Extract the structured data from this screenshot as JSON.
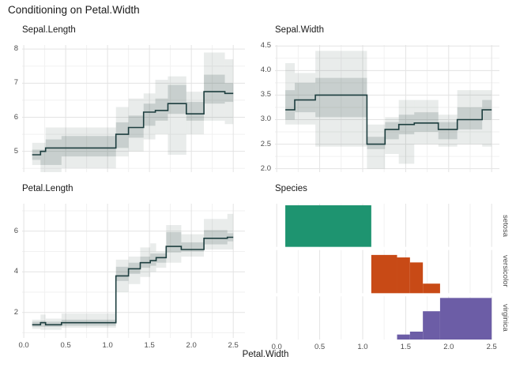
{
  "title": "Conditioning on Petal.Width",
  "x_axis": {
    "label": "Petal.Width",
    "tick_values": [
      0,
      0.5,
      1.0,
      1.5,
      2.0,
      2.5
    ],
    "tick_labels": [
      "0.0",
      "0.5",
      "1.0",
      "1.5",
      "2.0",
      "2.5"
    ],
    "minor_ticks": [
      0.25,
      0.75,
      1.25,
      1.75,
      2.25
    ]
  },
  "colors": {
    "background": "#ffffff",
    "step_line": "#1d3e3f",
    "band": "#46615c",
    "grid_major": "#e3e3e3",
    "grid_minor": "#f1f1f1",
    "text_dark": "#1a1a1a",
    "text_gray": "#4d4d4d",
    "setosa": "#1e9470",
    "versicolor": "#c84a16",
    "virginica": "#6c5da6"
  },
  "chart_data": [
    {
      "type": "area",
      "panel": "sepal-length",
      "title": "Sepal.Length",
      "xlabel": "Petal.Width",
      "ylim": [
        4.39,
        8.12
      ],
      "yticks": [
        5,
        6,
        7,
        8
      ],
      "ytick_labels": [
        "5",
        "6",
        "7",
        "8"
      ],
      "yminor": [
        4.5,
        5.5,
        6.5,
        7.5
      ],
      "grid": true,
      "segments_key": "[x_from, x_to, median, outer_lo, outer_hi, inner_lo, inner_hi]",
      "segments": [
        [
          0.1,
          0.2,
          4.9,
          4.6,
          5.25,
          4.75,
          5.05
        ],
        [
          0.2,
          0.26,
          5.0,
          4.35,
          5.25,
          4.6,
          5.05
        ],
        [
          0.26,
          0.45,
          5.1,
          4.35,
          5.7,
          4.6,
          5.35
        ],
        [
          0.45,
          1.1,
          5.1,
          4.5,
          5.7,
          4.85,
          5.45
        ],
        [
          1.1,
          1.25,
          5.5,
          4.85,
          6.3,
          5.1,
          5.85
        ],
        [
          1.25,
          1.43,
          5.7,
          5.0,
          6.55,
          5.4,
          6.05
        ],
        [
          1.43,
          1.57,
          6.15,
          5.35,
          6.7,
          5.75,
          6.4
        ],
        [
          1.57,
          1.72,
          6.2,
          5.5,
          7.1,
          5.9,
          6.55
        ],
        [
          1.72,
          1.94,
          6.4,
          4.9,
          7.2,
          6.1,
          6.95
        ],
        [
          1.94,
          2.15,
          6.1,
          5.5,
          6.75,
          5.9,
          6.45
        ],
        [
          2.15,
          2.4,
          6.75,
          5.9,
          7.9,
          6.4,
          7.25
        ],
        [
          2.4,
          2.5,
          6.7,
          5.8,
          7.7,
          6.45,
          7.0
        ]
      ]
    },
    {
      "type": "area",
      "panel": "sepal-width",
      "title": "Sepal.Width",
      "xlabel": "Petal.Width",
      "ylim": [
        1.93,
        4.52
      ],
      "yticks": [
        2.0,
        2.5,
        3.0,
        3.5,
        4.0,
        4.5
      ],
      "ytick_labels": [
        "2.0",
        "2.5",
        "3.0",
        "3.5",
        "4.0",
        "4.5"
      ],
      "yminor": [
        2.25,
        2.75,
        3.25,
        3.75,
        4.25
      ],
      "grid": true,
      "segments_key": "[x_from, x_to, median, outer_lo, outer_hi, inner_lo, inner_hi]",
      "segments": [
        [
          0.1,
          0.21,
          3.2,
          2.9,
          4.15,
          3.0,
          3.6
        ],
        [
          0.21,
          0.45,
          3.4,
          2.9,
          3.95,
          3.15,
          3.75
        ],
        [
          0.45,
          1.05,
          3.5,
          2.45,
          4.4,
          3.05,
          3.85
        ],
        [
          1.05,
          1.26,
          2.5,
          2.0,
          2.9,
          2.4,
          2.65
        ],
        [
          1.26,
          1.42,
          2.8,
          2.3,
          3.05,
          2.6,
          2.95
        ],
        [
          1.42,
          1.6,
          2.9,
          2.1,
          3.4,
          2.7,
          3.1
        ],
        [
          1.6,
          1.88,
          2.93,
          2.5,
          3.4,
          2.75,
          3.15
        ],
        [
          1.88,
          2.1,
          2.8,
          2.45,
          3.1,
          2.6,
          2.95
        ],
        [
          2.1,
          2.39,
          3.0,
          2.5,
          3.6,
          2.8,
          3.25
        ],
        [
          2.39,
          2.5,
          3.2,
          2.45,
          3.6,
          3.0,
          3.4
        ]
      ]
    },
    {
      "type": "area",
      "panel": "petal-length",
      "title": "Petal.Length",
      "xlabel": "Petal.Width",
      "ylim": [
        0.75,
        7.35
      ],
      "yticks": [
        2,
        4,
        6
      ],
      "ytick_labels": [
        "2",
        "4",
        "6"
      ],
      "yminor": [
        1,
        3,
        5,
        7
      ],
      "grid": true,
      "segments_key": "[x_from, x_to, median, outer_lo, outer_hi, inner_lo, inner_hi]",
      "segments": [
        [
          0.1,
          0.2,
          1.4,
          1.2,
          1.65,
          1.3,
          1.55
        ],
        [
          0.2,
          0.26,
          1.5,
          1.15,
          1.9,
          1.3,
          1.6
        ],
        [
          0.26,
          0.45,
          1.4,
          1.15,
          1.7,
          1.3,
          1.55
        ],
        [
          0.45,
          1.1,
          1.5,
          1.25,
          1.95,
          1.35,
          1.65
        ],
        [
          1.1,
          1.25,
          3.8,
          3.0,
          4.6,
          3.55,
          4.25
        ],
        [
          1.25,
          1.39,
          4.15,
          3.4,
          4.75,
          3.9,
          4.45
        ],
        [
          1.39,
          1.51,
          4.45,
          3.75,
          5.2,
          4.2,
          4.75
        ],
        [
          1.51,
          1.58,
          4.55,
          4.0,
          5.4,
          4.3,
          4.9
        ],
        [
          1.58,
          1.7,
          4.7,
          4.2,
          5.0,
          4.45,
          4.9
        ],
        [
          1.7,
          1.88,
          5.25,
          4.45,
          6.3,
          4.95,
          5.95
        ],
        [
          1.88,
          2.15,
          5.1,
          4.75,
          5.85,
          5.0,
          5.45
        ],
        [
          2.15,
          2.43,
          5.65,
          5.1,
          6.6,
          5.35,
          6.05
        ],
        [
          2.43,
          2.5,
          5.7,
          5.1,
          6.85,
          5.5,
          5.9
        ]
      ]
    },
    {
      "type": "bar",
      "panel": "species",
      "title": "Species",
      "xlabel": "Petal.Width",
      "bars_key": "[x_from, x_to, relative_height]",
      "facets": [
        {
          "label": "setosa",
          "color": "#1e9470",
          "bars": [
            [
              0.1,
              1.1,
              1.0
            ]
          ]
        },
        {
          "label": "versicolor",
          "color": "#c84a16",
          "bars": [
            [
              1.1,
              1.4,
              0.92
            ],
            [
              1.4,
              1.55,
              0.86
            ],
            [
              1.55,
              1.7,
              0.74
            ],
            [
              1.7,
              1.9,
              0.23
            ]
          ]
        },
        {
          "label": "virginica",
          "color": "#6c5da6",
          "bars": [
            [
              1.4,
              1.55,
              0.12
            ],
            [
              1.55,
              1.7,
              0.19
            ],
            [
              1.7,
              1.9,
              0.68
            ],
            [
              1.9,
              2.5,
              1.0
            ]
          ]
        }
      ]
    }
  ]
}
